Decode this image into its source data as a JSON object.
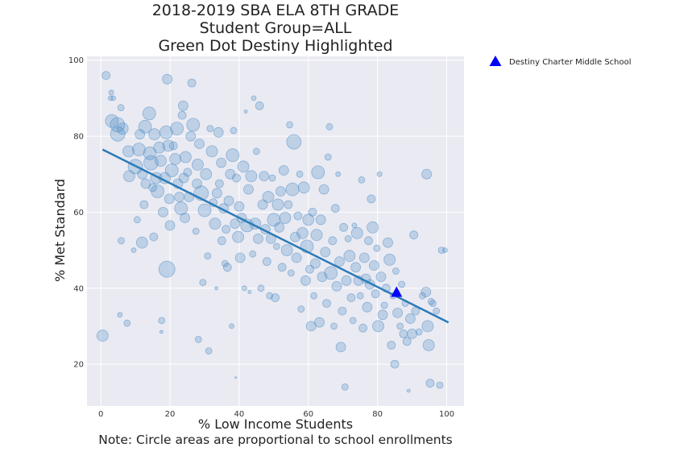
{
  "chart_data": {
    "type": "scatter",
    "title_lines": [
      "2018-2019 SBA ELA 8TH GRADE",
      "Student Group=ALL",
      "Green Dot Destiny Highlighted"
    ],
    "xlabel": "% Low Income Students",
    "ylabel": "% Met Standard",
    "note": "Note: Circle areas are proportional to school enrollments",
    "xlim": [
      -4,
      105
    ],
    "ylim": [
      9,
      101
    ],
    "x_ticks": [
      0,
      20,
      40,
      60,
      80,
      100
    ],
    "y_ticks": [
      20,
      40,
      60,
      80,
      100
    ],
    "grid": true,
    "background_color": "#eaeaf2",
    "point_color": "#4c8cc4",
    "line_color": "#2c7bb6",
    "highlight_color": "#0000ff",
    "regression": {
      "x": [
        0.5,
        100.5
      ],
      "y": [
        76.5,
        31
      ]
    },
    "highlight": {
      "name": "Destiny Charter Middle School",
      "x": 85.5,
      "y": 39,
      "marker": "triangle"
    },
    "legend": {
      "placement": "outside-top-right",
      "entries": [
        "Destiny Charter Middle School"
      ]
    },
    "points": [
      [
        1.5,
        96,
        5
      ],
      [
        0.5,
        27.5,
        7
      ],
      [
        3,
        91.5,
        3
      ],
      [
        2.8,
        90,
        3
      ],
      [
        3.6,
        90,
        3
      ],
      [
        5.8,
        87.5,
        4
      ],
      [
        3.2,
        84,
        8
      ],
      [
        4.8,
        83,
        9
      ],
      [
        4.9,
        80.6,
        9
      ],
      [
        6.3,
        82,
        7
      ],
      [
        8,
        76,
        7
      ],
      [
        5.9,
        52.5,
        4
      ],
      [
        5.5,
        33,
        3
      ],
      [
        7.6,
        30.8,
        4
      ],
      [
        8.2,
        69.5,
        7
      ],
      [
        9.5,
        50,
        3
      ],
      [
        10,
        72,
        9
      ],
      [
        10.5,
        58,
        4
      ],
      [
        11,
        76.5,
        8
      ],
      [
        11.3,
        80.5,
        6
      ],
      [
        11.9,
        52,
        7
      ],
      [
        12,
        70,
        6
      ],
      [
        12.5,
        62,
        5
      ],
      [
        12.8,
        82.5,
        8
      ],
      [
        13,
        67.5,
        6
      ],
      [
        14,
        86,
        8
      ],
      [
        14.2,
        75.5,
        8
      ],
      [
        14.5,
        73,
        9
      ],
      [
        15,
        66.5,
        5
      ],
      [
        15.3,
        53.5,
        5
      ],
      [
        15.5,
        80.5,
        7
      ],
      [
        16,
        69,
        7
      ],
      [
        16.4,
        65.5,
        8
      ],
      [
        16.9,
        77,
        7
      ],
      [
        17.3,
        73.5,
        7
      ],
      [
        17.5,
        28.5,
        2
      ],
      [
        17.6,
        31.5,
        4
      ],
      [
        18,
        60,
        6
      ],
      [
        18.5,
        69,
        7
      ],
      [
        18.9,
        81,
        8
      ],
      [
        19.1,
        45,
        10
      ],
      [
        19.2,
        95,
        6
      ],
      [
        19.5,
        77.5,
        7
      ],
      [
        19.8,
        63.5,
        6
      ],
      [
        20,
        56.5,
        6
      ],
      [
        20.5,
        71,
        8
      ],
      [
        21,
        77.5,
        5
      ],
      [
        21.5,
        74,
        7
      ],
      [
        22,
        82,
        8
      ],
      [
        22.3,
        67.5,
        6
      ],
      [
        22.7,
        64,
        6
      ],
      [
        23.2,
        61,
        8
      ],
      [
        23.5,
        85.5,
        5
      ],
      [
        23.8,
        88,
        6
      ],
      [
        24,
        69,
        6
      ],
      [
        24.3,
        58.5,
        6
      ],
      [
        24.5,
        74.5,
        7
      ],
      [
        25.1,
        70.5,
        5
      ],
      [
        25.5,
        64,
        6
      ],
      [
        26,
        80,
        6
      ],
      [
        26.3,
        94,
        5
      ],
      [
        26.7,
        83,
        8
      ],
      [
        27.5,
        55,
        4
      ],
      [
        27.8,
        67.5,
        6
      ],
      [
        28,
        72.5,
        7
      ],
      [
        28.2,
        26.5,
        4
      ],
      [
        28.5,
        78,
        6
      ],
      [
        29,
        65,
        9
      ],
      [
        29.5,
        41.5,
        4
      ],
      [
        30,
        60.5,
        8
      ],
      [
        30.4,
        70,
        7
      ],
      [
        30.9,
        48.5,
        4
      ],
      [
        31.2,
        23.5,
        4
      ],
      [
        31.6,
        82,
        4
      ],
      [
        32.1,
        76,
        7
      ],
      [
        32.5,
        62.5,
        5
      ],
      [
        33,
        57,
        7
      ],
      [
        33.4,
        40,
        2
      ],
      [
        33.6,
        65,
        6
      ],
      [
        34,
        81,
        6
      ],
      [
        34.3,
        67.5,
        5
      ],
      [
        34.8,
        73,
        6
      ],
      [
        35,
        52.5,
        5
      ],
      [
        35.5,
        61,
        6
      ],
      [
        35.9,
        46.5,
        4
      ],
      [
        36.2,
        55.5,
        5
      ],
      [
        36.6,
        45.5,
        5
      ],
      [
        37,
        63,
        6
      ],
      [
        37.4,
        70,
        6
      ],
      [
        37.8,
        30,
        3
      ],
      [
        38.1,
        75,
        8
      ],
      [
        38.4,
        81.5,
        4
      ],
      [
        38.8,
        57,
        6
      ],
      [
        39,
        16.5,
        1
      ],
      [
        39.2,
        69,
        5
      ],
      [
        39.7,
        53.5,
        7
      ],
      [
        40,
        61.5,
        6
      ],
      [
        40.3,
        48,
        6
      ],
      [
        40.7,
        58.5,
        6
      ],
      [
        41.2,
        72,
        7
      ],
      [
        41.5,
        40,
        3
      ],
      [
        41.9,
        86.5,
        2
      ],
      [
        42.3,
        56.5,
        8
      ],
      [
        42.7,
        66,
        6
      ],
      [
        43,
        39,
        2
      ],
      [
        43.5,
        69.5,
        7
      ],
      [
        43.9,
        49,
        4
      ],
      [
        44.2,
        90,
        3
      ],
      [
        44.6,
        57,
        7
      ],
      [
        45,
        76,
        4
      ],
      [
        45.5,
        53,
        6
      ],
      [
        45.9,
        88,
        5
      ],
      [
        46.3,
        40,
        4
      ],
      [
        46.8,
        62,
        6
      ],
      [
        47.2,
        69.5,
        6
      ],
      [
        47.6,
        55.5,
        6
      ],
      [
        48,
        47,
        5
      ],
      [
        48.4,
        64,
        7
      ],
      [
        48.8,
        38,
        4
      ],
      [
        49.2,
        53,
        6
      ],
      [
        49.6,
        69,
        4
      ],
      [
        50,
        58,
        8
      ],
      [
        50.4,
        37.5,
        5
      ],
      [
        50.8,
        51,
        4
      ],
      [
        51.2,
        62,
        7
      ],
      [
        51.6,
        56,
        6
      ],
      [
        52,
        65.5,
        6
      ],
      [
        52.4,
        45.5,
        5
      ],
      [
        52.9,
        71,
        6
      ],
      [
        53.3,
        58.5,
        7
      ],
      [
        53.8,
        50,
        7
      ],
      [
        54.2,
        62,
        5
      ],
      [
        54.6,
        83,
        4
      ],
      [
        55,
        44,
        4
      ],
      [
        55.4,
        66,
        8
      ],
      [
        55.8,
        78.5,
        9
      ],
      [
        56.2,
        53.5,
        6
      ],
      [
        56.6,
        48,
        6
      ],
      [
        57,
        59,
        5
      ],
      [
        57.5,
        70,
        4
      ],
      [
        57.9,
        34.5,
        4
      ],
      [
        58.3,
        54.5,
        7
      ],
      [
        58.7,
        66.5,
        7
      ],
      [
        59.2,
        42,
        6
      ],
      [
        59.6,
        51,
        8
      ],
      [
        60,
        58,
        7
      ],
      [
        60.4,
        45,
        5
      ],
      [
        60.8,
        30,
        6
      ],
      [
        61.2,
        60,
        5
      ],
      [
        61.6,
        38,
        4
      ],
      [
        62,
        46.5,
        6
      ],
      [
        62.4,
        54,
        7
      ],
      [
        62.8,
        70.5,
        8
      ],
      [
        63.2,
        31,
        6
      ],
      [
        63.6,
        58,
        6
      ],
      [
        64,
        43,
        6
      ],
      [
        64.5,
        66,
        6
      ],
      [
        64.9,
        49.5,
        6
      ],
      [
        65.3,
        36,
        5
      ],
      [
        65.7,
        74.5,
        4
      ],
      [
        66.1,
        82.5,
        4
      ],
      [
        66.5,
        44,
        8
      ],
      [
        67,
        52.5,
        5
      ],
      [
        67.4,
        30,
        4
      ],
      [
        67.8,
        61,
        5
      ],
      [
        68.2,
        40.5,
        6
      ],
      [
        68.6,
        70,
        3
      ],
      [
        69,
        47,
        6
      ],
      [
        69.4,
        24.5,
        6
      ],
      [
        69.8,
        34,
        5
      ],
      [
        70.2,
        56,
        5
      ],
      [
        70.6,
        14,
        4
      ],
      [
        71,
        42,
        6
      ],
      [
        71.5,
        53,
        4
      ],
      [
        71.9,
        48.5,
        7
      ],
      [
        72.4,
        37.5,
        5
      ],
      [
        72.9,
        31.5,
        4
      ],
      [
        73.3,
        56.5,
        3
      ],
      [
        73.7,
        45.5,
        6
      ],
      [
        74.1,
        54.5,
        7
      ],
      [
        74.5,
        42,
        6
      ],
      [
        75,
        38,
        4
      ],
      [
        75.4,
        68.5,
        4
      ],
      [
        75.8,
        29.5,
        5
      ],
      [
        76.2,
        48,
        6
      ],
      [
        76.6,
        42.5,
        6
      ],
      [
        77,
        35,
        6
      ],
      [
        77.4,
        52.5,
        5
      ],
      [
        77.8,
        41,
        6
      ],
      [
        78.2,
        63.5,
        5
      ],
      [
        78.6,
        56,
        7
      ],
      [
        79,
        46,
        6
      ],
      [
        79.4,
        38.5,
        5
      ],
      [
        79.8,
        50.5,
        4
      ],
      [
        80.2,
        30,
        7
      ],
      [
        80.6,
        70,
        3
      ],
      [
        81,
        43,
        6
      ],
      [
        81.5,
        33,
        6
      ],
      [
        82,
        35.5,
        4
      ],
      [
        82.5,
        40,
        5
      ],
      [
        83,
        52,
        6
      ],
      [
        83.5,
        47.5,
        7
      ],
      [
        84,
        25,
        5
      ],
      [
        84.5,
        38,
        4
      ],
      [
        85,
        20,
        5
      ],
      [
        85.3,
        44.5,
        4
      ],
      [
        85.8,
        33.5,
        6
      ],
      [
        86.5,
        30,
        4
      ],
      [
        87,
        41,
        4
      ],
      [
        87.5,
        28,
        5
      ],
      [
        88,
        36,
        4
      ],
      [
        88.5,
        26,
        5
      ],
      [
        89,
        13,
        2
      ],
      [
        89.5,
        32,
        6
      ],
      [
        90,
        28,
        6
      ],
      [
        90.5,
        54,
        5
      ],
      [
        91,
        34,
        5
      ],
      [
        92,
        28.5,
        4
      ],
      [
        93,
        38,
        4
      ],
      [
        94,
        39,
        6
      ],
      [
        94.2,
        70,
        6
      ],
      [
        94.5,
        30,
        7
      ],
      [
        94.8,
        25,
        7
      ],
      [
        95.2,
        15,
        5
      ],
      [
        95.5,
        36.5,
        4
      ],
      [
        96,
        36,
        4
      ],
      [
        97,
        34,
        4
      ],
      [
        98.5,
        50,
        4
      ],
      [
        99.5,
        50,
        3
      ],
      [
        98,
        14.5,
        4
      ]
    ]
  }
}
